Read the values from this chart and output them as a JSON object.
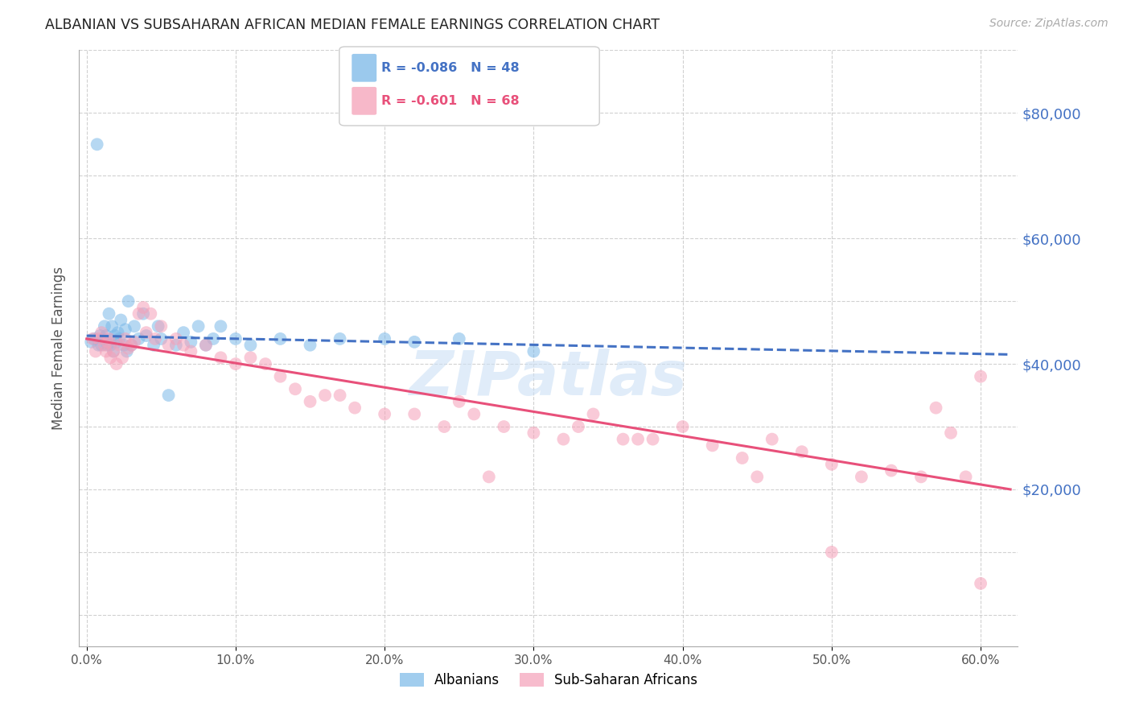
{
  "title": "ALBANIAN VS SUBSAHARAN AFRICAN MEDIAN FEMALE EARNINGS CORRELATION CHART",
  "source": "Source: ZipAtlas.com",
  "ylabel": "Median Female Earnings",
  "xlabel_ticks": [
    "0.0%",
    "10.0%",
    "20.0%",
    "30.0%",
    "40.0%",
    "50.0%",
    "60.0%"
  ],
  "xlabel_vals": [
    0.0,
    0.1,
    0.2,
    0.3,
    0.4,
    0.5,
    0.6
  ],
  "ytick_vals": [
    0,
    10000,
    20000,
    30000,
    40000,
    50000,
    60000,
    70000,
    80000,
    90000
  ],
  "ytick_labels_right": [
    "$20,000",
    "$40,000",
    "$60,000",
    "$80,000"
  ],
  "ytick_vals_right": [
    20000,
    40000,
    60000,
    80000
  ],
  "xlim": [
    -0.005,
    0.625
  ],
  "ylim": [
    -5000,
    90000
  ],
  "blue_color": "#7ab8e8",
  "pink_color": "#f5a0b8",
  "trend_blue_color": "#4472c4",
  "trend_pink_color": "#e8507a",
  "watermark": "ZIPatlas",
  "background_color": "#ffffff",
  "grid_color": "#cccccc",
  "R_blue": -0.086,
  "N_blue": 48,
  "R_pink": -0.601,
  "N_pink": 68,
  "blue_x": [
    0.003,
    0.005,
    0.007,
    0.008,
    0.009,
    0.01,
    0.011,
    0.012,
    0.013,
    0.014,
    0.015,
    0.016,
    0.017,
    0.018,
    0.019,
    0.02,
    0.021,
    0.022,
    0.023,
    0.025,
    0.026,
    0.027,
    0.028,
    0.03,
    0.032,
    0.035,
    0.038,
    0.04,
    0.045,
    0.048,
    0.05,
    0.055,
    0.06,
    0.065,
    0.07,
    0.075,
    0.08,
    0.085,
    0.09,
    0.1,
    0.11,
    0.13,
    0.15,
    0.17,
    0.2,
    0.22,
    0.25,
    0.3
  ],
  "blue_y": [
    43500,
    44000,
    75000,
    43000,
    44500,
    43000,
    44000,
    46000,
    44500,
    43000,
    48000,
    43000,
    46000,
    42000,
    44500,
    43500,
    45000,
    44000,
    47000,
    43000,
    45500,
    42000,
    50000,
    43000,
    46000,
    44000,
    48000,
    44500,
    43000,
    46000,
    44000,
    35000,
    43000,
    45000,
    43500,
    46000,
    43000,
    44000,
    46000,
    44000,
    43000,
    44000,
    43000,
    44000,
    44000,
    43500,
    44000,
    42000
  ],
  "pink_x": [
    0.004,
    0.006,
    0.008,
    0.01,
    0.012,
    0.013,
    0.014,
    0.015,
    0.016,
    0.018,
    0.02,
    0.022,
    0.024,
    0.026,
    0.028,
    0.03,
    0.032,
    0.035,
    0.038,
    0.04,
    0.043,
    0.046,
    0.05,
    0.055,
    0.06,
    0.065,
    0.07,
    0.08,
    0.09,
    0.1,
    0.11,
    0.12,
    0.13,
    0.14,
    0.15,
    0.16,
    0.18,
    0.2,
    0.22,
    0.24,
    0.26,
    0.28,
    0.3,
    0.32,
    0.34,
    0.36,
    0.38,
    0.4,
    0.42,
    0.44,
    0.46,
    0.48,
    0.5,
    0.52,
    0.54,
    0.56,
    0.57,
    0.58,
    0.59,
    0.6,
    0.17,
    0.25,
    0.33,
    0.45,
    0.27,
    0.37,
    0.5,
    0.6
  ],
  "pink_y": [
    44000,
    42000,
    44000,
    45000,
    43000,
    42000,
    43500,
    44000,
    41000,
    42000,
    40000,
    43000,
    41000,
    44000,
    42500,
    43000,
    43500,
    48000,
    49000,
    45000,
    48000,
    44000,
    46000,
    43000,
    44000,
    43000,
    42000,
    43000,
    41000,
    40000,
    41000,
    40000,
    38000,
    36000,
    34000,
    35000,
    33000,
    32000,
    32000,
    30000,
    32000,
    30000,
    29000,
    28000,
    32000,
    28000,
    28000,
    30000,
    27000,
    25000,
    28000,
    26000,
    24000,
    22000,
    23000,
    22000,
    33000,
    29000,
    22000,
    38000,
    35000,
    34000,
    30000,
    22000,
    22000,
    28000,
    10000,
    5000
  ]
}
